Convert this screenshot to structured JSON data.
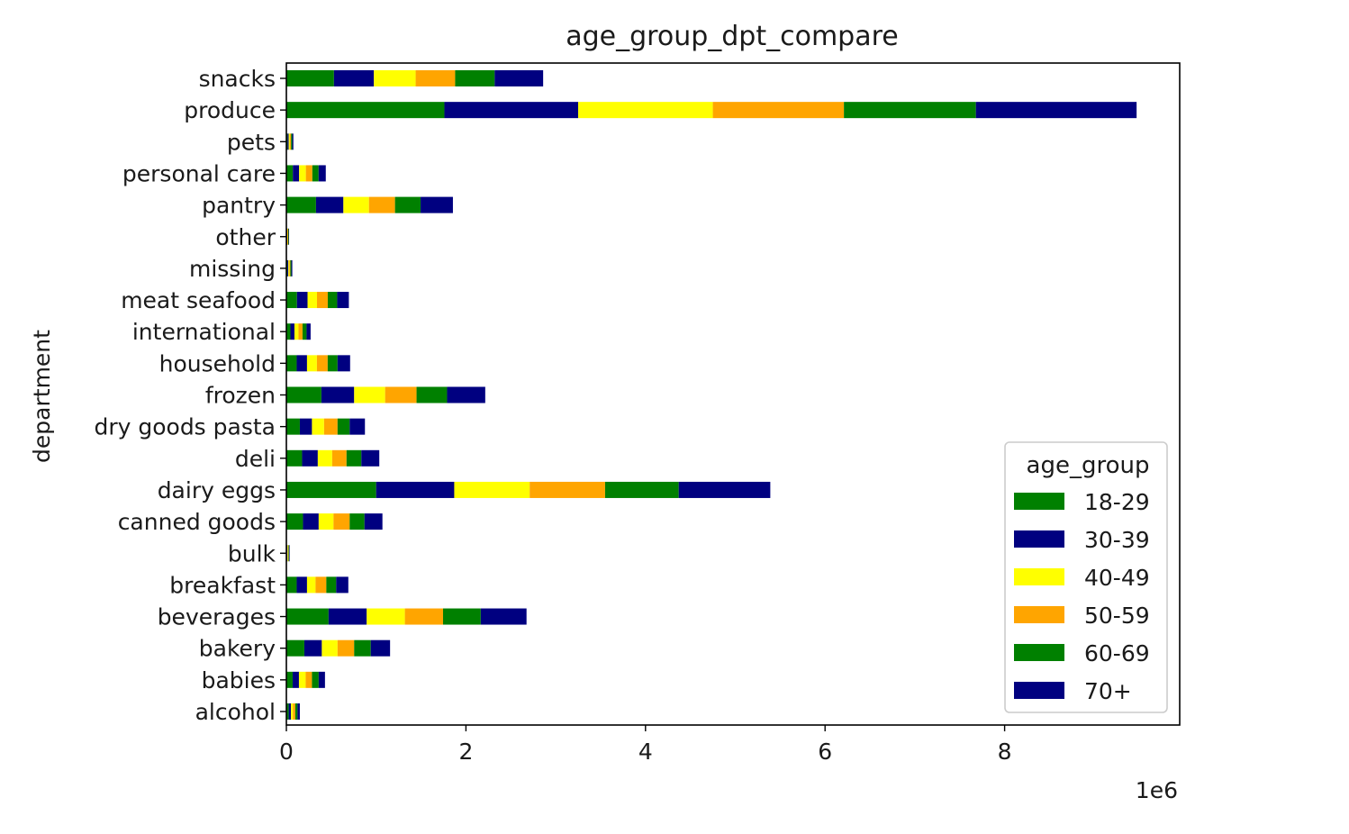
{
  "chart_data": {
    "type": "bar",
    "orientation": "horizontal",
    "stacked": true,
    "title": "age_group_dpt_compare",
    "xlabel": "",
    "ylabel": "department",
    "x_scale_note": "1e6",
    "xlim": [
      0,
      9950000
    ],
    "xticks": [
      0,
      2,
      4,
      6,
      8
    ],
    "grid": false,
    "legend": {
      "title": "age_group",
      "placement": "lower-right"
    },
    "categories": [
      "alcohol",
      "babies",
      "bakery",
      "beverages",
      "breakfast",
      "bulk",
      "canned goods",
      "dairy eggs",
      "deli",
      "dry goods pasta",
      "frozen",
      "household",
      "international",
      "meat seafood",
      "missing",
      "other",
      "pantry",
      "personal care",
      "pets",
      "produce",
      "snacks"
    ],
    "series": [
      {
        "name": "18-29",
        "color": "#008000",
        "values": [
          26000,
          70000,
          200000,
          470000,
          115000,
          6000,
          185000,
          1000000,
          175000,
          150000,
          390000,
          115000,
          45000,
          118000,
          11000,
          5000,
          330000,
          72000,
          13000,
          1760000,
          530000
        ]
      },
      {
        "name": "30-39",
        "color": "#000080",
        "values": [
          25000,
          70000,
          195000,
          425000,
          115000,
          6000,
          175000,
          870000,
          175000,
          135000,
          365000,
          115000,
          45000,
          118000,
          11000,
          5000,
          305000,
          70000,
          13000,
          1490000,
          445000
        ]
      },
      {
        "name": "40-49",
        "color": "#FFFF00",
        "values": [
          22000,
          75000,
          175000,
          425000,
          95000,
          6000,
          165000,
          840000,
          160000,
          135000,
          345000,
          110000,
          45000,
          105000,
          11000,
          5000,
          285000,
          75000,
          13000,
          1500000,
          465000
        ]
      },
      {
        "name": "50-59",
        "color": "#FFA500",
        "values": [
          26000,
          70000,
          185000,
          425000,
          120000,
          6000,
          180000,
          840000,
          160000,
          150000,
          350000,
          120000,
          45000,
          120000,
          11000,
          5000,
          290000,
          72000,
          13000,
          1460000,
          440000
        ]
      },
      {
        "name": "60-69",
        "color": "#008000",
        "values": [
          25000,
          75000,
          185000,
          420000,
          110000,
          6000,
          165000,
          820000,
          165000,
          135000,
          340000,
          110000,
          45000,
          105000,
          11000,
          5000,
          285000,
          70000,
          13000,
          1470000,
          440000
        ]
      },
      {
        "name": "70+",
        "color": "#000080",
        "values": [
          26000,
          70000,
          215000,
          510000,
          135000,
          6000,
          200000,
          1020000,
          200000,
          170000,
          425000,
          140000,
          45000,
          130000,
          11000,
          5000,
          360000,
          80000,
          13000,
          1790000,
          540000
        ]
      }
    ]
  }
}
